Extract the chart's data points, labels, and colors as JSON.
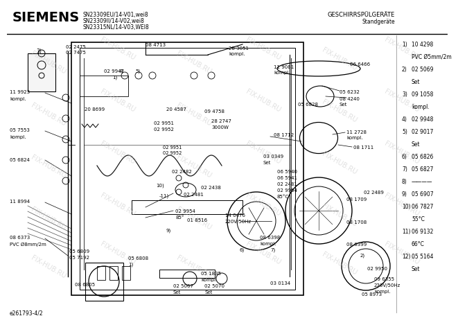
{
  "title_brand": "SIEMENS",
  "title_models": "SN23309EU/14-V01,wei8\nSN23309II/14-V02,wei8\nSN23315NL/14-V03,WEI8",
  "title_right_top": "GESCHIRRSPÜLGERÄTE",
  "title_right_sub": "Standgeräte",
  "footer_left": "e261793-4/2",
  "watermark": "FIX-HUB.RU",
  "bg_color": "#ffffff",
  "parts_list_left": [
    [
      "1)  10 4298",
      "     PVC Ø5mm/2m"
    ],
    [
      "2)  02 5069",
      "     Set"
    ],
    [
      "3)  09 1058",
      "     kompl."
    ],
    [
      "4)  02 9948",
      ""
    ],
    [
      "5)  02 9017",
      "     Set"
    ],
    [
      "6)  05 6826",
      ""
    ],
    [
      "7)  05 6827",
      ""
    ],
    [
      "8)  ———",
      ""
    ],
    [
      "9)  05 6907",
      ""
    ],
    [
      "10) 06 7827",
      "     55°C"
    ],
    [
      "11) 06 9132",
      "     66°C"
    ],
    [
      "12) 05 5164",
      "     Set"
    ]
  ]
}
